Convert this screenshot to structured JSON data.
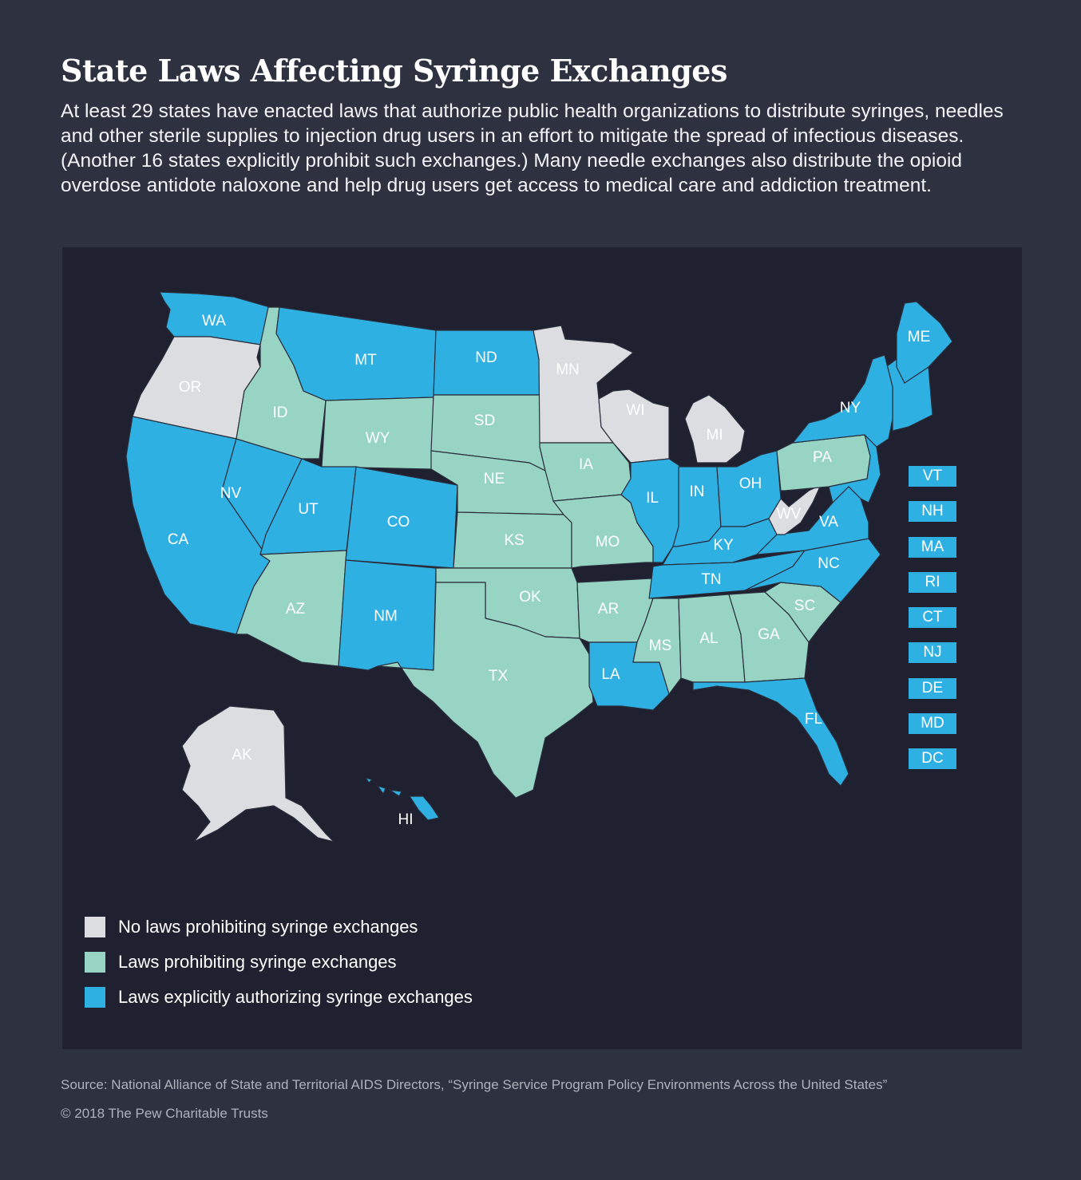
{
  "title": "State Laws Affecting Syringe Exchanges",
  "intro": "At least 29 states have enacted laws that authorize public health organizations to distribute syringes, needles and other sterile supplies to injection drug users in an effort to mitigate the spread of infectious diseases. (Another 16 states explicitly prohibit such exchanges.) Many needle exchanges also distribute the opioid overdose antidote naloxone and help drug users get access to medical care and addiction treatment.",
  "colors": {
    "none": "#dcdde0",
    "prohibit": "#97d4c4",
    "authorize": "#2eb0e3"
  },
  "legend": [
    {
      "key": "none",
      "label": "No laws prohibiting syringe exchanges"
    },
    {
      "key": "prohibit",
      "label": "Laws prohibiting syringe exchanges"
    },
    {
      "key": "authorize",
      "label": "Laws explicitly authorizing syringe exchanges"
    }
  ],
  "states": [
    {
      "abbr": "WA",
      "status": "authorize"
    },
    {
      "abbr": "OR",
      "status": "none"
    },
    {
      "abbr": "CA",
      "status": "authorize"
    },
    {
      "abbr": "NV",
      "status": "authorize"
    },
    {
      "abbr": "ID",
      "status": "prohibit"
    },
    {
      "abbr": "MT",
      "status": "authorize"
    },
    {
      "abbr": "WY",
      "status": "prohibit"
    },
    {
      "abbr": "UT",
      "status": "authorize"
    },
    {
      "abbr": "AZ",
      "status": "prohibit"
    },
    {
      "abbr": "CO",
      "status": "authorize"
    },
    {
      "abbr": "NM",
      "status": "authorize"
    },
    {
      "abbr": "ND",
      "status": "authorize"
    },
    {
      "abbr": "SD",
      "status": "prohibit"
    },
    {
      "abbr": "NE",
      "status": "prohibit"
    },
    {
      "abbr": "KS",
      "status": "prohibit"
    },
    {
      "abbr": "OK",
      "status": "prohibit"
    },
    {
      "abbr": "TX",
      "status": "prohibit"
    },
    {
      "abbr": "MN",
      "status": "none"
    },
    {
      "abbr": "IA",
      "status": "prohibit"
    },
    {
      "abbr": "MO",
      "status": "prohibit"
    },
    {
      "abbr": "AR",
      "status": "prohibit"
    },
    {
      "abbr": "LA",
      "status": "authorize"
    },
    {
      "abbr": "WI",
      "status": "none"
    },
    {
      "abbr": "IL",
      "status": "authorize"
    },
    {
      "abbr": "MI",
      "status": "none"
    },
    {
      "abbr": "IN",
      "status": "authorize"
    },
    {
      "abbr": "OH",
      "status": "authorize"
    },
    {
      "abbr": "KY",
      "status": "authorize"
    },
    {
      "abbr": "TN",
      "status": "authorize"
    },
    {
      "abbr": "MS",
      "status": "prohibit"
    },
    {
      "abbr": "AL",
      "status": "prohibit"
    },
    {
      "abbr": "GA",
      "status": "prohibit"
    },
    {
      "abbr": "FL",
      "status": "authorize"
    },
    {
      "abbr": "SC",
      "status": "prohibit"
    },
    {
      "abbr": "NC",
      "status": "authorize"
    },
    {
      "abbr": "VA",
      "status": "authorize"
    },
    {
      "abbr": "WV",
      "status": "none"
    },
    {
      "abbr": "PA",
      "status": "prohibit"
    },
    {
      "abbr": "NY",
      "status": "authorize"
    },
    {
      "abbr": "ME",
      "status": "authorize"
    },
    {
      "abbr": "AK",
      "status": "none"
    },
    {
      "abbr": "HI",
      "status": "authorize"
    }
  ],
  "small_states": [
    {
      "abbr": "VT",
      "status": "authorize"
    },
    {
      "abbr": "NH",
      "status": "authorize"
    },
    {
      "abbr": "MA",
      "status": "authorize"
    },
    {
      "abbr": "RI",
      "status": "authorize"
    },
    {
      "abbr": "CT",
      "status": "authorize"
    },
    {
      "abbr": "NJ",
      "status": "authorize"
    },
    {
      "abbr": "DE",
      "status": "authorize"
    },
    {
      "abbr": "MD",
      "status": "authorize"
    },
    {
      "abbr": "DC",
      "status": "authorize"
    }
  ],
  "source": "Source: National Alliance of State and Territorial AIDS Directors, “Syringe Service Program Policy Environments Across the United States”",
  "copyright": "© 2018 The Pew Charitable Trusts"
}
